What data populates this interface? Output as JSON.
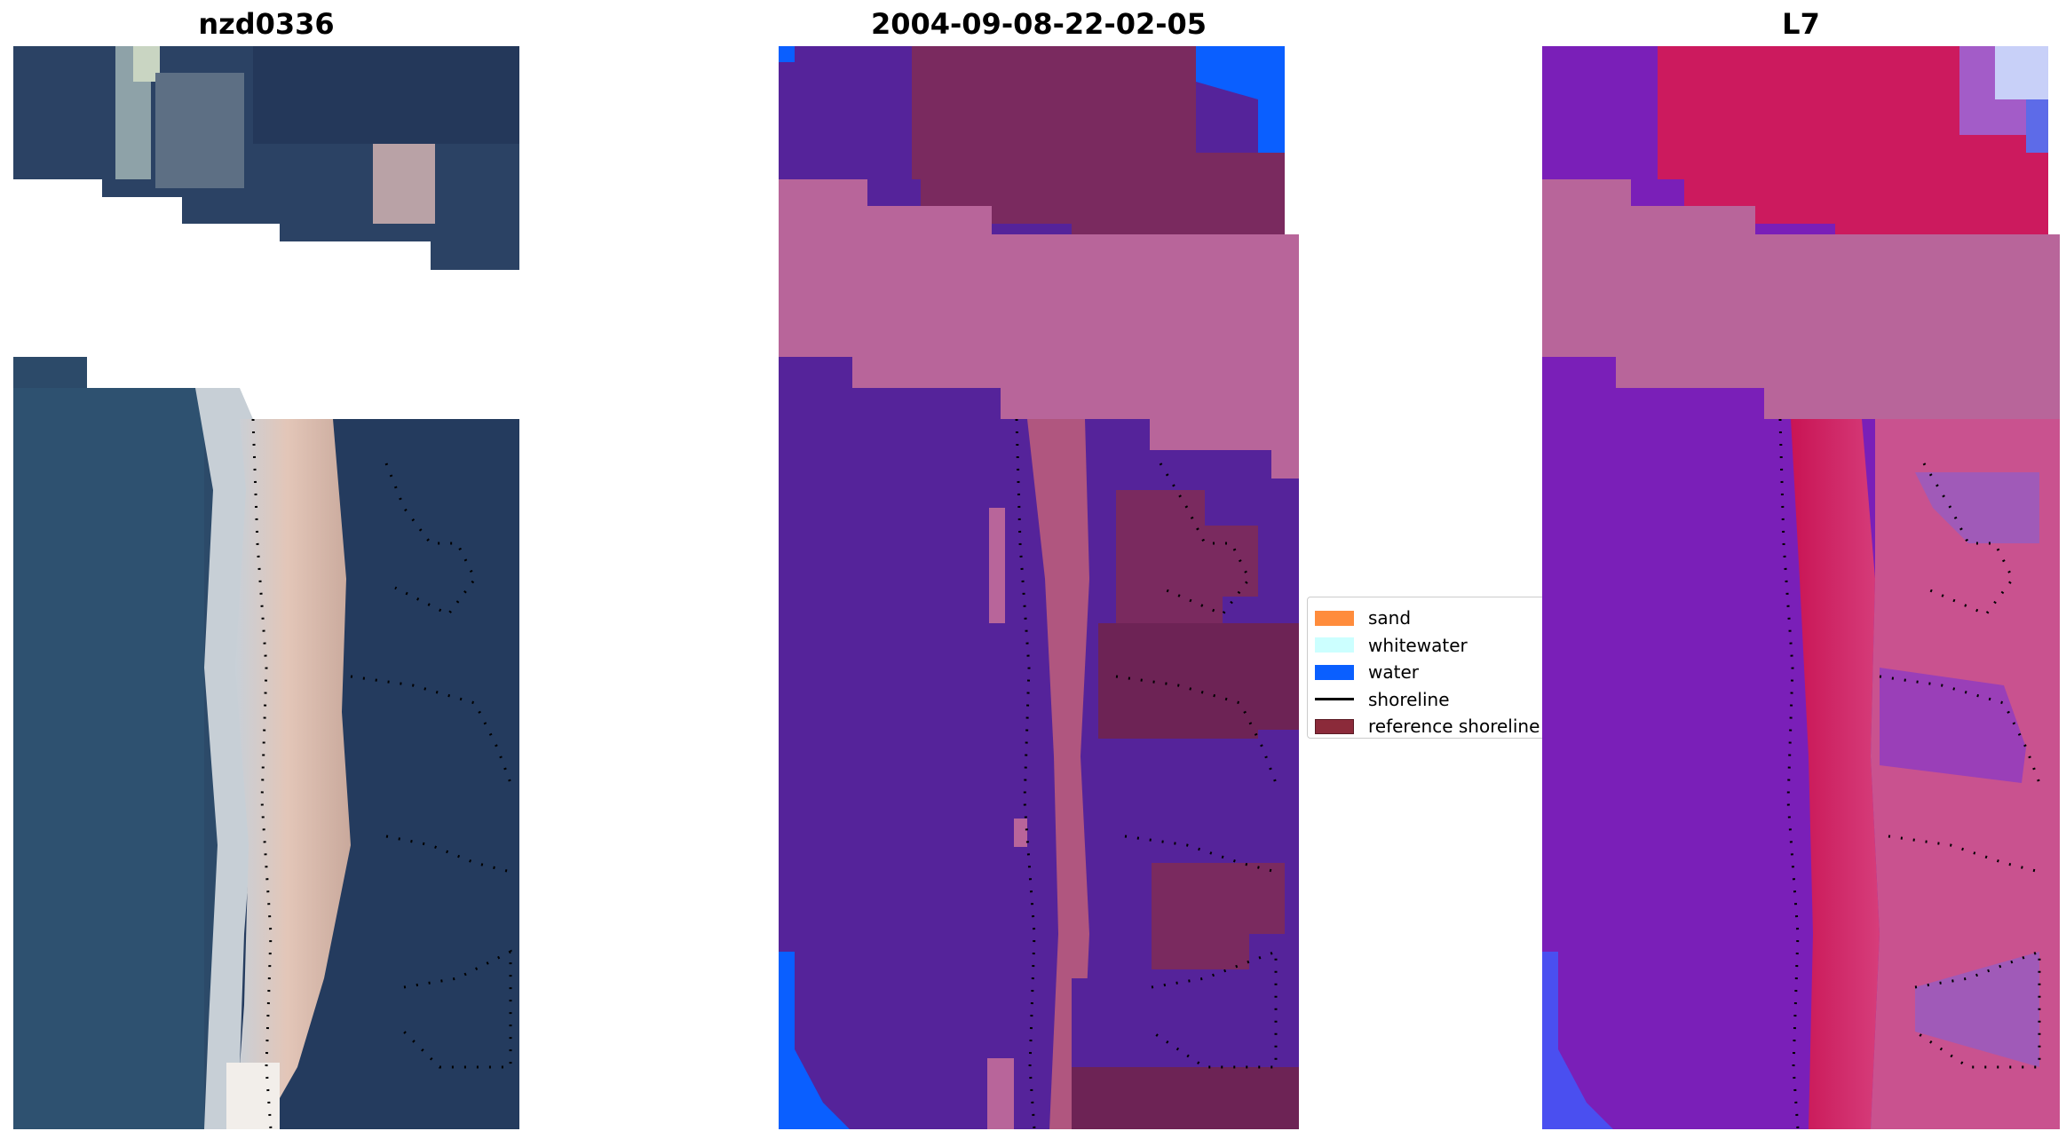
{
  "panels": [
    {
      "title": "nzd0336",
      "kind": "rgb"
    },
    {
      "title": "2004-09-08-22-02-05",
      "kind": "classified"
    },
    {
      "title": "L7",
      "kind": "mndwi"
    }
  ],
  "legend": {
    "items": [
      {
        "label": "sand",
        "color": "#ff8c3c",
        "kind": "patch"
      },
      {
        "label": "whitewater",
        "color": "#ccffff",
        "kind": "patch"
      },
      {
        "label": "water",
        "color": "#0a5fff",
        "kind": "patch"
      },
      {
        "label": "shoreline",
        "color": "#000000",
        "kind": "line"
      },
      {
        "label": "reference shoreline",
        "color": "#8b2a3a",
        "kind": "patch"
      }
    ]
  },
  "colors": {
    "rgb_water": "#2b4a6a",
    "rgb_sand": "#d9b7a8",
    "rgb_land": "#253a5e",
    "class_other": "#55239a",
    "class_reference": "#b8659a",
    "class_sand_overlay": "#7a2a5f",
    "class_water": "#0a5fff",
    "mndwi_water": "#7a1fb8",
    "mndwi_land": "#d3175a",
    "mndwi_reference": "#b8659a"
  }
}
